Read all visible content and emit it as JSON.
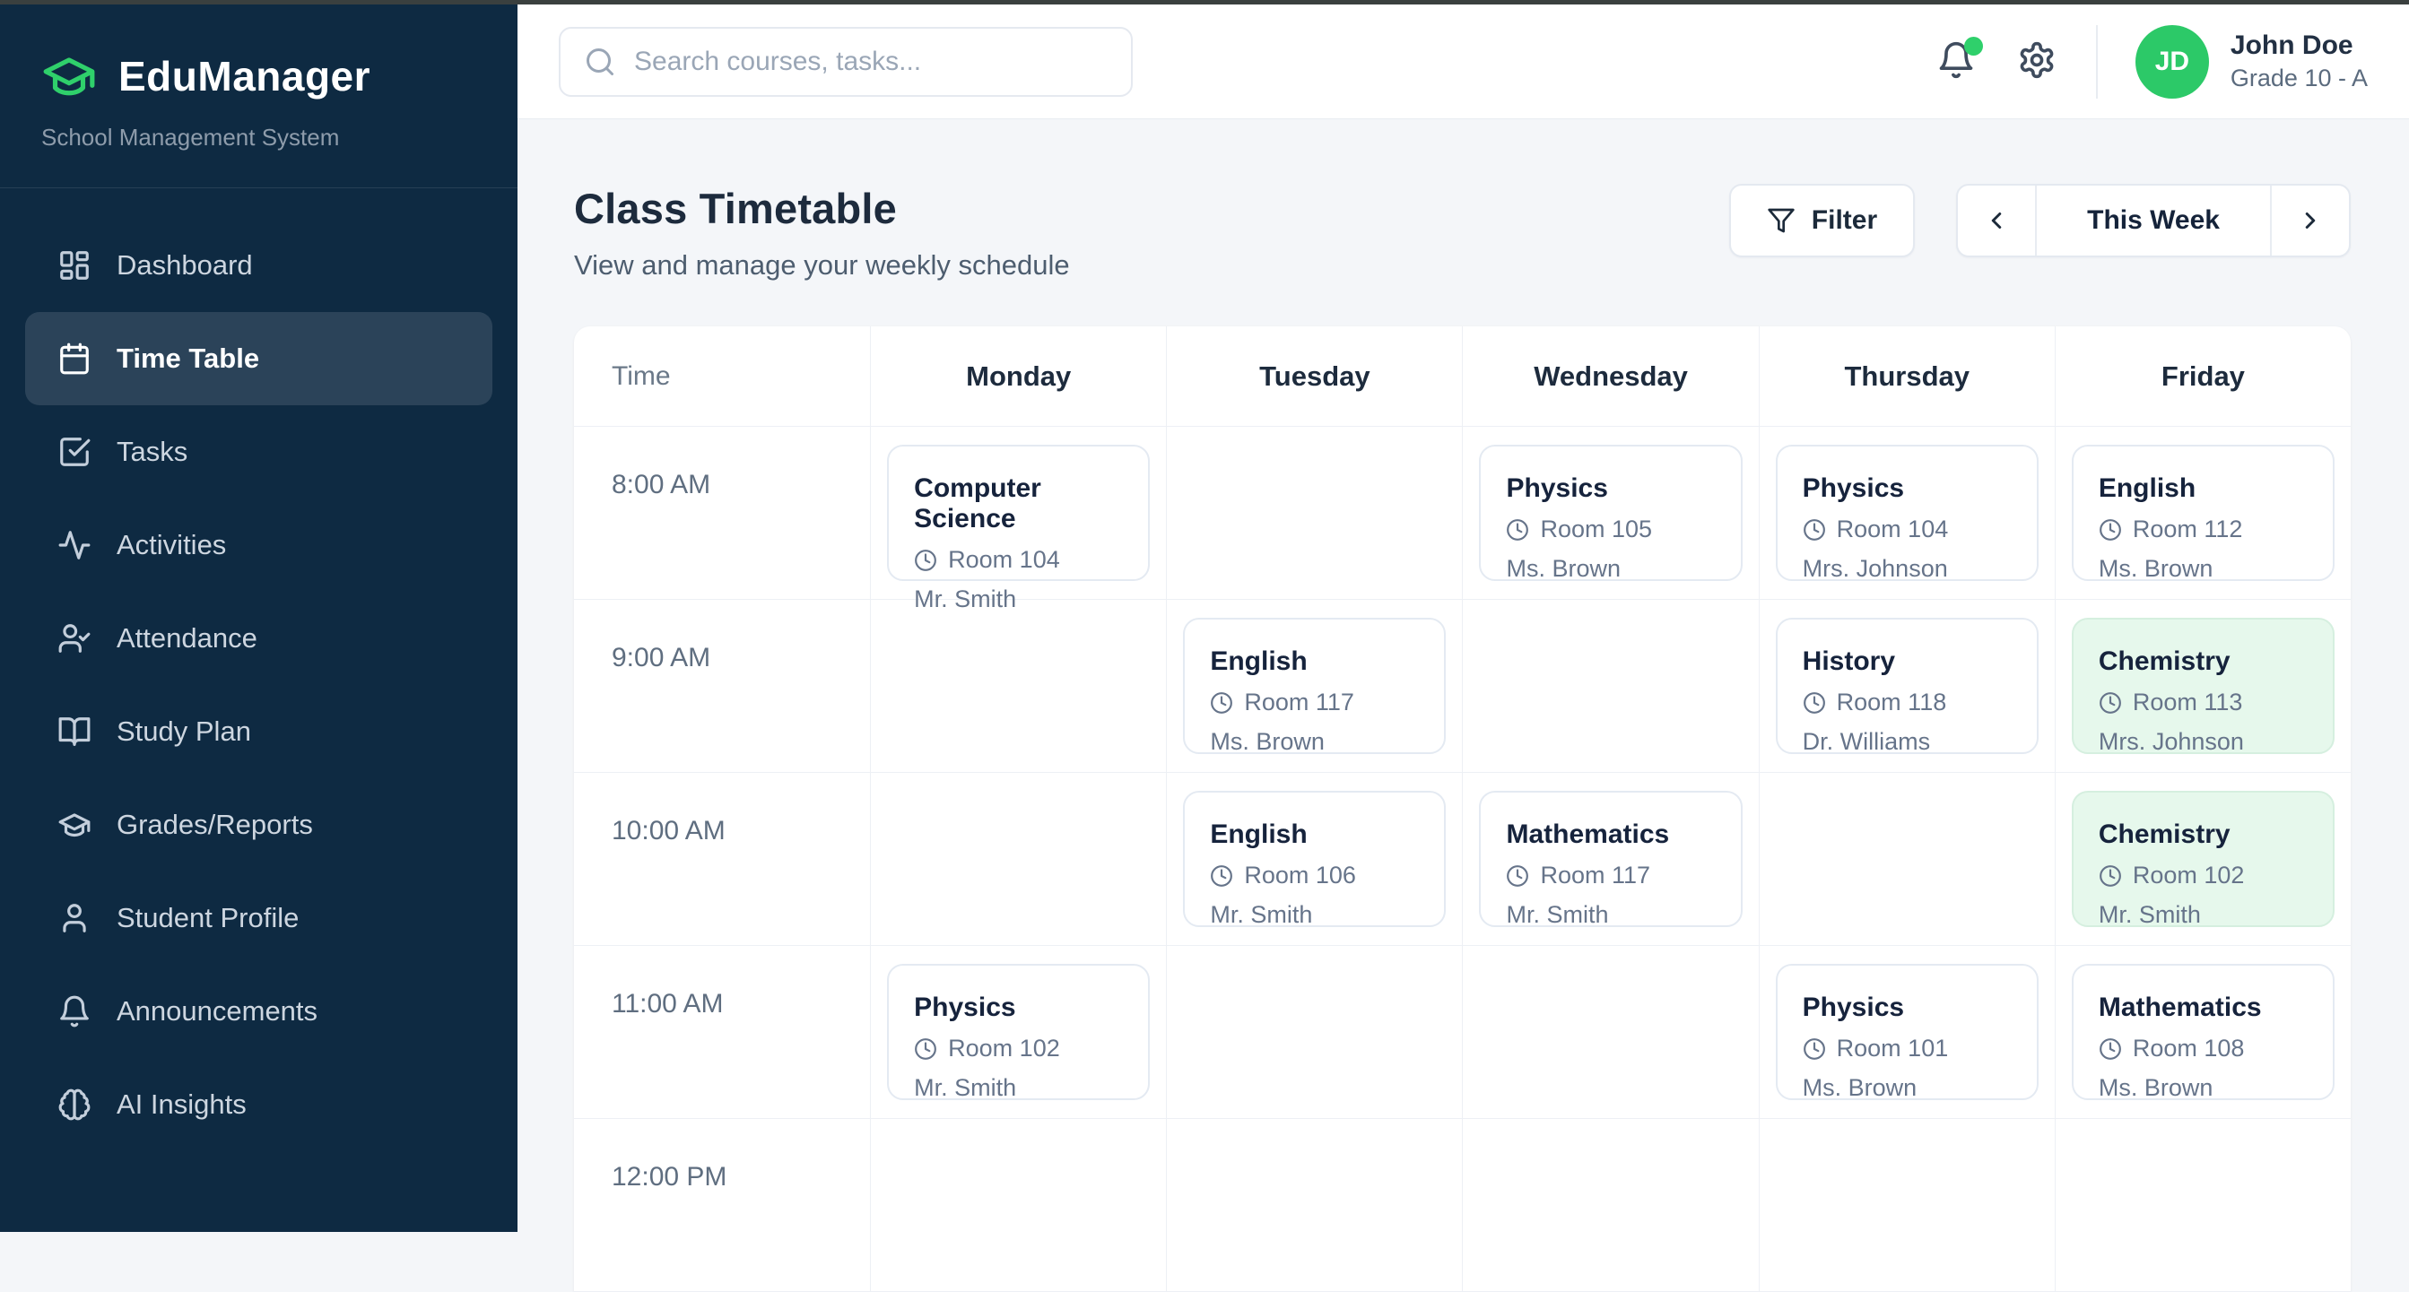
{
  "colors": {
    "accent_green": "#2fd06b",
    "sidebar_bg": "#0e2a42",
    "content_bg": "#f4f6f9",
    "highlight_card_bg": "#e6f8ec"
  },
  "sidebar": {
    "logo_title": "EduManager",
    "logo_subtitle": "School Management System",
    "items": [
      {
        "label": "Dashboard",
        "icon": "dashboard-grid-icon",
        "active": false
      },
      {
        "label": "Time Table",
        "icon": "calendar-icon",
        "active": true
      },
      {
        "label": "Tasks",
        "icon": "task-check-icon",
        "active": false
      },
      {
        "label": "Activities",
        "icon": "activity-pulse-icon",
        "active": false
      },
      {
        "label": "Attendance",
        "icon": "user-check-icon",
        "active": false
      },
      {
        "label": "Study Plan",
        "icon": "book-open-icon",
        "active": false
      },
      {
        "label": "Grades/Reports",
        "icon": "graduation-cap-icon",
        "active": false
      },
      {
        "label": "Student Profile",
        "icon": "user-icon",
        "active": false
      },
      {
        "label": "Announcements",
        "icon": "bell-icon",
        "active": false
      },
      {
        "label": "AI Insights",
        "icon": "brain-icon",
        "active": false
      }
    ]
  },
  "topbar": {
    "search_placeholder": "Search courses, tasks...",
    "notification_dot": true,
    "user": {
      "initials": "JD",
      "name": "John Doe",
      "grade": "Grade 10 - A"
    }
  },
  "page": {
    "title": "Class Timetable",
    "subtitle": "View and manage your weekly schedule",
    "filter_label": "Filter",
    "week_label": "This Week"
  },
  "timetable": {
    "columns": [
      "Time",
      "Monday",
      "Tuesday",
      "Wednesday",
      "Thursday",
      "Friday"
    ],
    "rows": [
      {
        "time": "8:00 AM",
        "cells": [
          {
            "subject": "Computer Science",
            "room": "Room 104",
            "teacher": "Mr. Smith"
          },
          null,
          {
            "subject": "Physics",
            "room": "Room 105",
            "teacher": "Ms. Brown"
          },
          {
            "subject": "Physics",
            "room": "Room 104",
            "teacher": "Mrs. Johnson"
          },
          {
            "subject": "English",
            "room": "Room 112",
            "teacher": "Ms. Brown"
          }
        ]
      },
      {
        "time": "9:00 AM",
        "cells": [
          null,
          {
            "subject": "English",
            "room": "Room 117",
            "teacher": "Ms. Brown"
          },
          null,
          {
            "subject": "History",
            "room": "Room 118",
            "teacher": "Dr. Williams"
          },
          {
            "subject": "Chemistry",
            "room": "Room 113",
            "teacher": "Mrs. Johnson",
            "highlight": true
          }
        ]
      },
      {
        "time": "10:00 AM",
        "cells": [
          null,
          {
            "subject": "English",
            "room": "Room 106",
            "teacher": "Mr. Smith"
          },
          {
            "subject": "Mathematics",
            "room": "Room 117",
            "teacher": "Mr. Smith"
          },
          null,
          {
            "subject": "Chemistry",
            "room": "Room 102",
            "teacher": "Mr. Smith",
            "highlight": true
          }
        ]
      },
      {
        "time": "11:00 AM",
        "cells": [
          {
            "subject": "Physics",
            "room": "Room 102",
            "teacher": "Mr. Smith"
          },
          null,
          null,
          {
            "subject": "Physics",
            "room": "Room 101",
            "teacher": "Ms. Brown"
          },
          {
            "subject": "Mathematics",
            "room": "Room 108",
            "teacher": "Ms. Brown"
          }
        ]
      },
      {
        "time": "12:00 PM",
        "cells": [
          null,
          null,
          null,
          null,
          null
        ]
      }
    ]
  }
}
